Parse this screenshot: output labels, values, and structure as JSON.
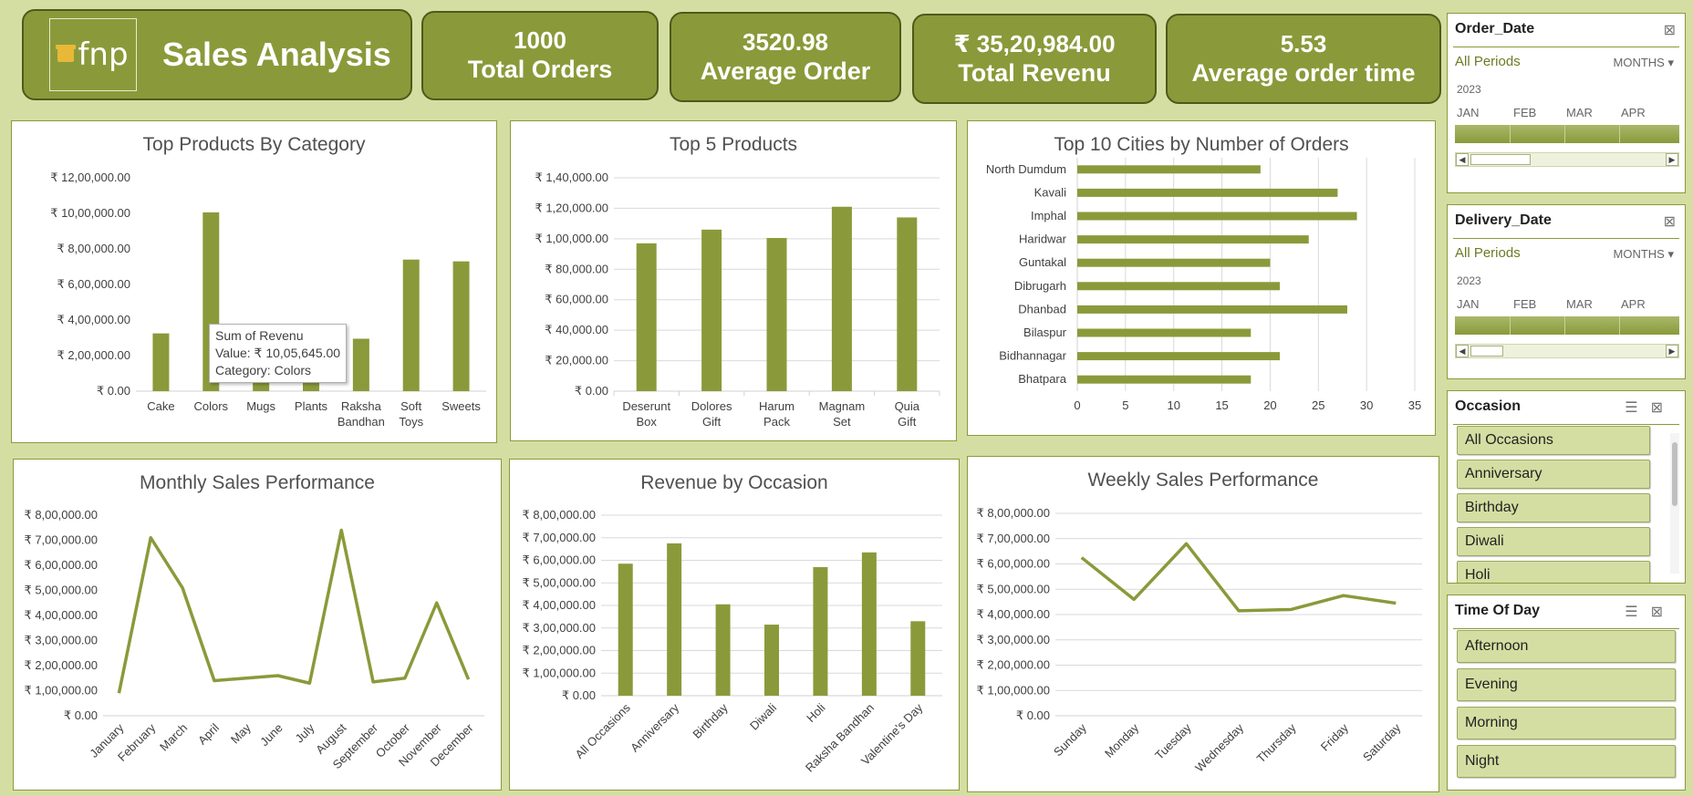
{
  "header": {
    "logo_text": "fnp",
    "title": "Sales Analysis"
  },
  "kpis": [
    {
      "value": "1000",
      "label": "Total Orders"
    },
    {
      "value": "3520.98",
      "label": "Average Order"
    },
    {
      "value": "₹ 35,20,984.00",
      "label": "Total Revenu"
    },
    {
      "value": "5.53",
      "label": "Average order time"
    }
  ],
  "colors": {
    "accent": "#8a9a3a",
    "background": "#d4dea2",
    "border": "#4d5a1a"
  },
  "chart_data": [
    {
      "type": "bar",
      "title": "Top Products By Category",
      "categories": [
        "Cake",
        "Colors",
        "Mugs",
        "Plants",
        "Raksha Bandhan",
        "Soft Toys",
        "Sweets"
      ],
      "values": [
        325000,
        1005645,
        175000,
        115000,
        295000,
        740000,
        730000
      ],
      "ylim": [
        0,
        1200000
      ],
      "yticks": [
        "₹ 0.00",
        "₹ 2,00,000.00",
        "₹ 4,00,000.00",
        "₹ 6,00,000.00",
        "₹ 8,00,000.00",
        "₹ 10,00,000.00",
        "₹ 12,00,000.00"
      ],
      "grid": false
    },
    {
      "type": "bar",
      "title": "Top 5 Products",
      "categories": [
        "Deserunt Box",
        "Dolores Gift",
        "Harum Pack",
        "Magnam Set",
        "Quia Gift"
      ],
      "values": [
        97000,
        106000,
        100500,
        121000,
        114000
      ],
      "ylim": [
        0,
        140000
      ],
      "yticks": [
        "₹ 0.00",
        "₹ 20,000.00",
        "₹ 40,000.00",
        "₹ 60,000.00",
        "₹ 80,000.00",
        "₹ 1,00,000.00",
        "₹ 1,20,000.00",
        "₹ 1,40,000.00"
      ],
      "grid": true
    },
    {
      "type": "bar",
      "orientation": "horizontal",
      "title": "Top 10 Cities by Number of Orders",
      "categories": [
        "North Dumdum",
        "Kavali",
        "Imphal",
        "Haridwar",
        "Guntakal",
        "Dibrugarh",
        "Dhanbad",
        "Bilaspur",
        "Bidhannagar",
        "Bhatpara"
      ],
      "values": [
        19,
        27,
        29,
        24,
        20,
        21,
        28,
        18,
        21,
        18
      ],
      "xlim": [
        0,
        35
      ],
      "xticks": [
        "0",
        "5",
        "10",
        "15",
        "20",
        "25",
        "30",
        "35"
      ],
      "grid": true
    },
    {
      "type": "line",
      "title": "Monthly Sales Performance",
      "categories": [
        "January",
        "February",
        "March",
        "April",
        "May",
        "June",
        "July",
        "August",
        "September",
        "October",
        "November",
        "December"
      ],
      "values": [
        90000,
        710000,
        510000,
        140000,
        150000,
        160000,
        130000,
        740000,
        135000,
        150000,
        450000,
        145000
      ],
      "ylim": [
        0,
        800000
      ],
      "yticks": [
        "₹ 0.00",
        "₹ 1,00,000.00",
        "₹ 2,00,000.00",
        "₹ 3,00,000.00",
        "₹ 4,00,000.00",
        "₹ 5,00,000.00",
        "₹ 6,00,000.00",
        "₹ 7,00,000.00",
        "₹ 8,00,000.00"
      ],
      "grid": false
    },
    {
      "type": "bar",
      "title": "Revenue by Occasion",
      "categories": [
        "All Occasions",
        "Anniversary",
        "Birthday",
        "Diwali",
        "Holi",
        "Raksha Bandhan",
        "Valentine's Day"
      ],
      "values": [
        585000,
        675000,
        405000,
        315000,
        570000,
        635000,
        330000
      ],
      "ylim": [
        0,
        800000
      ],
      "yticks": [
        "₹ 0.00",
        "₹ 1,00,000.00",
        "₹ 2,00,000.00",
        "₹ 3,00,000.00",
        "₹ 4,00,000.00",
        "₹ 5,00,000.00",
        "₹ 6,00,000.00",
        "₹ 7,00,000.00",
        "₹ 8,00,000.00"
      ],
      "grid": true
    },
    {
      "type": "line",
      "title": "Weekly Sales Performance",
      "categories": [
        "Sunday",
        "Monday",
        "Tuesday",
        "Wednesday",
        "Thursday",
        "Friday",
        "Saturday"
      ],
      "values": [
        625000,
        460000,
        680000,
        415000,
        420000,
        475000,
        445000
      ],
      "ylim": [
        0,
        800000
      ],
      "yticks": [
        "₹ 0.00",
        "₹ 1,00,000.00",
        "₹ 2,00,000.00",
        "₹ 3,00,000.00",
        "₹ 4,00,000.00",
        "₹ 5,00,000.00",
        "₹ 6,00,000.00",
        "₹ 7,00,000.00",
        "₹ 8,00,000.00"
      ],
      "grid": true
    }
  ],
  "tooltip": {
    "line1": "Sum of Revenu",
    "line2": "Value: ₹ 10,05,645.00",
    "line3": "Category: Colors"
  },
  "slicers": {
    "order_date": {
      "title": "Order_Date",
      "period": "All Periods",
      "level": "MONTHS",
      "year": "2023",
      "months": [
        "JAN",
        "FEB",
        "MAR",
        "APR"
      ]
    },
    "delivery_date": {
      "title": "Delivery_Date",
      "period": "All Periods",
      "level": "MONTHS",
      "year": "2023",
      "months": [
        "JAN",
        "FEB",
        "MAR",
        "APR"
      ]
    },
    "occasion": {
      "title": "Occasion",
      "items": [
        "All Occasions",
        "Anniversary",
        "Birthday",
        "Diwali",
        "Holi"
      ]
    },
    "time_of_day": {
      "title": "Time Of Day",
      "items": [
        "Afternoon",
        "Evening",
        "Morning",
        "Night"
      ]
    }
  }
}
